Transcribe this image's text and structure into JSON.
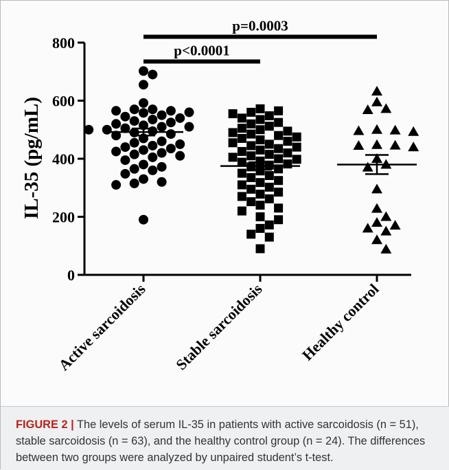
{
  "chart_data": {
    "type": "scatter",
    "ylabel": "IL-35 (pg/mL)",
    "ylim": [
      0,
      800
    ],
    "yticks": [
      0,
      200,
      400,
      600,
      800
    ],
    "categories": [
      "Active sarcoidosis",
      "Stable sarcoidosis",
      "Healthy control"
    ],
    "series": [
      {
        "marker": "circle",
        "values": [
          702,
          690,
          655,
          592,
          570,
          570,
          565,
          565,
          560,
          558,
          550,
          545,
          540,
          535,
          530,
          525,
          520,
          515,
          510,
          510,
          505,
          500,
          500,
          495,
          490,
          485,
          480,
          470,
          460,
          455,
          450,
          445,
          440,
          435,
          430,
          425,
          420,
          415,
          410,
          405,
          395,
          380,
          372,
          365,
          360,
          348,
          330,
          320,
          315,
          310,
          190
        ],
        "mean": 492,
        "sem": 12
      },
      {
        "marker": "square",
        "values": [
          572,
          565,
          560,
          555,
          548,
          540,
          535,
          525,
          520,
          512,
          505,
          500,
          495,
          490,
          485,
          480,
          475,
          470,
          465,
          460,
          455,
          450,
          445,
          440,
          435,
          430,
          425,
          420,
          415,
          410,
          405,
          400,
          398,
          392,
          388,
          382,
          378,
          372,
          365,
          358,
          350,
          342,
          335,
          325,
          318,
          310,
          302,
          295,
          285,
          278,
          270,
          262,
          252,
          240,
          230,
          220,
          200,
          190,
          172,
          160,
          140,
          130,
          90
        ],
        "mean": 375,
        "sem": 13
      },
      {
        "marker": "triangle",
        "values": [
          632,
          595,
          572,
          568,
          500,
          498,
          496,
          493,
          448,
          446,
          445,
          440,
          400,
          380,
          370,
          295,
          228,
          200,
          180,
          170,
          160,
          150,
          120,
          88
        ],
        "mean": 380,
        "sem": 33
      }
    ],
    "annotations": [
      {
        "from": 0,
        "to": 1,
        "label": "p<0.0001",
        "y": 735
      },
      {
        "from": 0,
        "to": 2,
        "label": "p=0.0003",
        "y": 820
      }
    ]
  },
  "caption": {
    "label": "FIGURE 2 |",
    "text": " The levels of serum IL-35 in patients with active sarcoidosis (n = 51), stable sarcoidosis (n = 63), and the healthy control group (n = 24). The differences between two groups were analyzed by unpaired student’s t-test."
  }
}
